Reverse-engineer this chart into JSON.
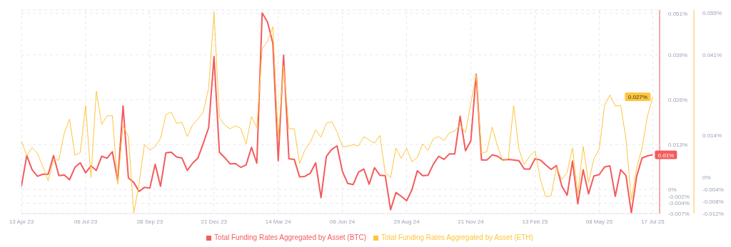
{
  "chart_data": {
    "type": "line",
    "x": [
      "2023-04-13",
      "2023-04-20",
      "2023-04-27",
      "2023-05-04",
      "2023-05-11",
      "2023-05-18",
      "2023-05-25",
      "2023-06-01",
      "2023-06-08",
      "2023-06-15",
      "2023-06-22",
      "2023-06-29",
      "2023-07-06",
      "2023-07-13",
      "2023-07-20",
      "2023-07-27",
      "2023-08-03",
      "2023-08-10",
      "2023-08-17",
      "2023-08-24",
      "2023-08-31",
      "2023-09-07",
      "2023-09-14",
      "2023-09-21",
      "2023-09-28",
      "2023-10-05",
      "2023-10-12",
      "2023-10-19",
      "2023-10-26",
      "2023-11-02",
      "2023-11-09",
      "2023-11-16",
      "2023-11-23",
      "2023-11-30",
      "2023-12-07",
      "2023-12-14",
      "2023-12-21",
      "2023-12-28",
      "2024-01-04",
      "2024-01-11",
      "2024-01-18",
      "2024-01-25",
      "2024-02-01",
      "2024-02-08",
      "2024-02-15",
      "2024-02-22",
      "2024-02-29",
      "2024-03-07",
      "2024-03-14",
      "2024-03-21",
      "2024-03-28",
      "2024-04-04",
      "2024-04-11",
      "2024-04-18",
      "2024-04-25",
      "2024-05-02",
      "2024-05-09",
      "2024-05-16",
      "2024-05-23",
      "2024-05-30",
      "2024-06-06",
      "2024-06-13",
      "2024-06-20",
      "2024-06-27",
      "2024-07-04",
      "2024-07-11",
      "2024-07-18",
      "2024-07-25",
      "2024-08-01",
      "2024-08-08",
      "2024-08-15",
      "2024-08-22",
      "2024-08-29",
      "2024-09-05",
      "2024-09-12",
      "2024-09-19",
      "2024-09-26",
      "2024-10-03",
      "2024-10-10",
      "2024-10-17",
      "2024-10-24",
      "2024-10-31",
      "2024-11-07",
      "2024-11-14",
      "2024-11-21",
      "2024-11-28",
      "2024-12-05",
      "2024-12-12",
      "2024-12-19",
      "2024-12-26",
      "2025-01-02",
      "2025-01-09",
      "2025-01-16",
      "2025-01-23",
      "2025-01-30",
      "2025-02-06",
      "2025-02-13",
      "2025-02-20",
      "2025-02-27",
      "2025-03-06",
      "2025-03-13",
      "2025-03-20",
      "2025-03-27",
      "2025-04-03",
      "2025-04-10",
      "2025-04-17",
      "2025-04-24",
      "2025-05-01",
      "2025-05-08",
      "2025-05-15",
      "2025-05-22",
      "2025-05-29",
      "2025-06-05",
      "2025-06-12",
      "2025-06-19",
      "2025-06-26",
      "2025-07-03",
      "2025-07-10",
      "2025-07-17"
    ],
    "series": [
      {
        "name": "Total Funding Rates Aggregated by Asset (BTC)",
        "color": "#f45b5b",
        "axis": "y",
        "values": [
          0.0009,
          0.0098,
          0.0057,
          0.0038,
          0.0044,
          0.0044,
          0.0098,
          0.004,
          0.0042,
          0.0028,
          0.0064,
          0.0077,
          0.0048,
          0.0068,
          0.0055,
          0.0096,
          0.009,
          0.0109,
          0.0025,
          0.0242,
          0.0033,
          0.002,
          -0.0006,
          0.0006,
          0.0004,
          0.0073,
          0.0009,
          0.0106,
          0.0108,
          0.0094,
          0.0091,
          0.0055,
          0.0076,
          0.0091,
          0.0134,
          0.0179,
          0.0385,
          0.0108,
          0.0092,
          0.0074,
          0.0075,
          0.0064,
          0.0071,
          0.0122,
          0.0076,
          0.0511,
          0.0485,
          0.0423,
          0.0083,
          0.0389,
          0.0089,
          0.0087,
          0.0036,
          0.0038,
          0.0047,
          0.0077,
          -0.0024,
          0.0096,
          0.0116,
          0.0126,
          0.0052,
          0.0017,
          0.0014,
          0.005,
          0.0059,
          0.0015,
          0.0063,
          0.0041,
          0.004,
          -0.0059,
          -0.0009,
          -0.002,
          -0.0033,
          -0.0001,
          0.0054,
          0.004,
          0.0041,
          0.0073,
          0.0096,
          0.0087,
          0.0103,
          0.0103,
          0.0212,
          0.0112,
          0.0141,
          0.0334,
          0.0085,
          0.0085,
          0.01,
          0.0096,
          0.0085,
          0.0087,
          0.0085,
          0.0083,
          0.0059,
          0.0059,
          0.0089,
          0.0085,
          0.0071,
          0.0058,
          0.0069,
          0.001,
          -0.0017,
          0.0082,
          -0.0042,
          0.0057,
          -0.0013,
          0.0039,
          0.0043,
          0.0065,
          0.0068,
          -0.002,
          0.0057,
          0.004,
          -0.0068,
          0.0038,
          0.0091,
          0.0097,
          0.01
        ],
        "value_labels": [
          null,
          null,
          null,
          null,
          null,
          null,
          null,
          null,
          null,
          null,
          null,
          null,
          null,
          null,
          null,
          null,
          null,
          null,
          null,
          null,
          null,
          null,
          null,
          null,
          null,
          null,
          null,
          null,
          null,
          null,
          null,
          null,
          null,
          null,
          null,
          null,
          null,
          null,
          null,
          null,
          null,
          null,
          null,
          null,
          null,
          null,
          null,
          null,
          null,
          null,
          null,
          null,
          null,
          null,
          null,
          null,
          null,
          null,
          null,
          null,
          null,
          null,
          null,
          null,
          null,
          null,
          null,
          null,
          null,
          null,
          null,
          null,
          null,
          null,
          null,
          null,
          null,
          null,
          null,
          null,
          null,
          null,
          null,
          null,
          null,
          null,
          null,
          null,
          null,
          null,
          null,
          null,
          null,
          null,
          null,
          null,
          null,
          null,
          null,
          null,
          null,
          null,
          null,
          null,
          null,
          null,
          null,
          null,
          null,
          null,
          null,
          null,
          null,
          null,
          null,
          null,
          null,
          null,
          "0.01%"
        ]
      },
      {
        "name": "Total Funding Rates Aggregated by Asset (ETH)",
        "color": "#ffc53d",
        "axis": "y2",
        "values": [
          0.0122,
          0.0074,
          0.01,
          0.0081,
          0.0037,
          -0.0011,
          0.0059,
          0.0059,
          0.0148,
          0.0196,
          0.0074,
          0.0084,
          0.0241,
          0.0,
          0.0289,
          0.0178,
          0.0206,
          0.0207,
          -0.0022,
          0.0174,
          0.0137,
          -0.0119,
          -0.0019,
          0.0111,
          0.0091,
          0.0104,
          0.0131,
          0.021,
          0.0219,
          0.0181,
          0.0185,
          0.0137,
          0.0176,
          0.0196,
          0.0219,
          0.03,
          0.0553,
          0.02,
          0.0176,
          0.0163,
          0.0173,
          0.0165,
          0.0113,
          0.0204,
          0.0167,
          0.043,
          0.0456,
          0.0504,
          0.013,
          0.0374,
          0.0163,
          0.0163,
          0.0048,
          0.0093,
          0.0119,
          0.0159,
          0.0135,
          0.0181,
          0.0187,
          0.0152,
          0.0104,
          0.0104,
          0.011,
          0.0106,
          0.0137,
          0.0126,
          0.0115,
          0.0141,
          0.0017,
          0.0,
          0.0099,
          0.0064,
          0.0098,
          0.0053,
          0.0067,
          0.0113,
          0.0091,
          0.013,
          0.0137,
          0.0124,
          0.015,
          0.0156,
          0.0176,
          0.015,
          0.0248,
          0.0344,
          0.0081,
          0.0087,
          0.0169,
          0.0104,
          0.0056,
          0.0063,
          0.0241,
          0.0093,
          0.0044,
          0.0072,
          0.0089,
          -0.0006,
          -0.0064,
          -0.0061,
          0.0035,
          -0.0006,
          0.0017,
          0.0099,
          -0.0056,
          0.0104,
          -0.0017,
          0.0063,
          0.0095,
          0.0241,
          0.0276,
          0.0239,
          0.0241,
          0.013,
          -0.0074,
          0.0033,
          0.0099,
          0.0204,
          0.027
        ],
        "value_labels": [
          null,
          null,
          null,
          null,
          null,
          null,
          null,
          null,
          null,
          null,
          null,
          null,
          null,
          null,
          null,
          null,
          null,
          null,
          null,
          null,
          null,
          null,
          null,
          null,
          null,
          null,
          null,
          null,
          null,
          null,
          null,
          null,
          null,
          null,
          null,
          null,
          null,
          null,
          null,
          null,
          null,
          null,
          null,
          null,
          null,
          null,
          null,
          null,
          null,
          null,
          null,
          null,
          null,
          null,
          null,
          null,
          null,
          null,
          null,
          null,
          null,
          null,
          null,
          null,
          null,
          null,
          null,
          null,
          null,
          null,
          null,
          null,
          null,
          null,
          null,
          null,
          null,
          null,
          null,
          null,
          null,
          null,
          null,
          null,
          null,
          null,
          null,
          null,
          null,
          null,
          null,
          null,
          null,
          null,
          null,
          null,
          null,
          null,
          null,
          null,
          null,
          null,
          null,
          null,
          null,
          null,
          null,
          null,
          null,
          null,
          null,
          null,
          null,
          null,
          null,
          null,
          null,
          null,
          "0.027%"
        ]
      }
    ],
    "xlim": [
      "2023-04-13",
      "2025-07-26"
    ],
    "xticks": [
      {
        "value": "2023-04-13",
        "label": "13 Apr 23"
      },
      {
        "value": "2023-07-06",
        "label": "06 Jul 23"
      },
      {
        "value": "2023-09-28",
        "label": "28 Sep 23"
      },
      {
        "value": "2023-12-21",
        "label": "21 Dec 23"
      },
      {
        "value": "2024-03-14",
        "label": "14 Mar 24"
      },
      {
        "value": "2024-06-06",
        "label": "06 Jun 24"
      },
      {
        "value": "2024-08-29",
        "label": "29 Aug 24"
      },
      {
        "value": "2024-11-21",
        "label": "21 Nov 24"
      },
      {
        "value": "2025-02-13",
        "label": "13 Feb 25"
      },
      {
        "value": "2025-05-08",
        "label": "08 May 25"
      },
      {
        "value": "2025-07-17",
        "label": "17 Jul 25"
      }
    ],
    "ylim": [
      -0.007,
      0.052
    ],
    "yticks": [
      {
        "value": 0.051,
        "label": "0.051%"
      },
      {
        "value": 0.039,
        "label": "0.039%"
      },
      {
        "value": 0.026,
        "label": "0.026%"
      },
      {
        "value": 0.013,
        "label": "0.013%"
      },
      {
        "value": 0,
        "label": "0%"
      },
      {
        "value": -0.002,
        "label": "-0.002%"
      },
      {
        "value": -0.004,
        "label": "-0.004%"
      },
      {
        "value": -0.007,
        "label": "-0.007%"
      }
    ],
    "y2lim": [
      -0.012,
      0.056
    ],
    "y2ticks": [
      {
        "value": 0.055,
        "label": "0.055%"
      },
      {
        "value": 0.041,
        "label": "0.041%"
      },
      {
        "value": 0.014,
        "label": "0.014%"
      },
      {
        "value": 0,
        "label": "0%"
      },
      {
        "value": -0.004,
        "label": "-0.004%"
      },
      {
        "value": -0.008,
        "label": "-0.008%"
      },
      {
        "value": -0.012,
        "label": "-0.012%"
      }
    ],
    "grid": true,
    "legend": "bottom",
    "line_style": "solid"
  }
}
